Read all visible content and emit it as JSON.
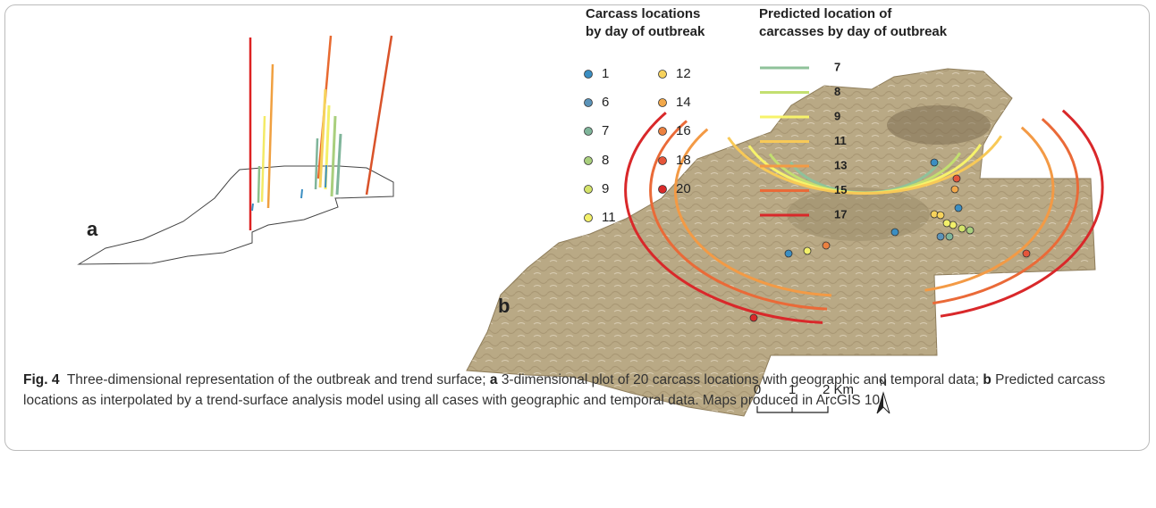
{
  "panel_a": {
    "label": "a"
  },
  "panel_b": {
    "label": "b"
  },
  "legend_carcass": {
    "title_lines": [
      "Carcass locations",
      "by day of outbreak"
    ],
    "items": [
      {
        "label": "1",
        "color": "#3b8ec2"
      },
      {
        "label": "6",
        "color": "#5b93b8"
      },
      {
        "label": "7",
        "color": "#7fb59a"
      },
      {
        "label": "8",
        "color": "#a9cf7d"
      },
      {
        "label": "9",
        "color": "#d4e36a"
      },
      {
        "label": "11",
        "color": "#f3f06a"
      },
      {
        "label": "12",
        "color": "#f6d25c"
      },
      {
        "label": "14",
        "color": "#f2a84a"
      },
      {
        "label": "16",
        "color": "#ec8140"
      },
      {
        "label": "18",
        "color": "#e5553a"
      },
      {
        "label": "20",
        "color": "#d92a2a"
      }
    ]
  },
  "legend_predicted": {
    "title_lines": [
      "Predicted location of",
      "carcasses by day of outbreak"
    ],
    "items": [
      {
        "label": "7",
        "color": "#8fc29a"
      },
      {
        "label": "8",
        "color": "#c3df70"
      },
      {
        "label": "9",
        "color": "#f7f36a"
      },
      {
        "label": "11",
        "color": "#f8c957"
      },
      {
        "label": "13",
        "color": "#f39a45"
      },
      {
        "label": "15",
        "color": "#ea6a38"
      },
      {
        "label": "17",
        "color": "#d9282a"
      }
    ]
  },
  "scale_bar": {
    "labels": [
      "0",
      "1",
      "2 Km"
    ],
    "north": "N"
  },
  "caption": {
    "figure_label": "Fig. 4",
    "intro": "Three-dimensional representation of the outbreak and trend surface;",
    "part_a_label": "a",
    "part_a_text": "3-dimensional plot of 20 carcass locations with geographic and temporal data;",
    "part_b_label": "b",
    "part_b_text": "Predicted carcass locations as interpolated by a trend-surface analysis model using all cases with geographic and temporal data. Maps produced in ArcGIS 10"
  }
}
